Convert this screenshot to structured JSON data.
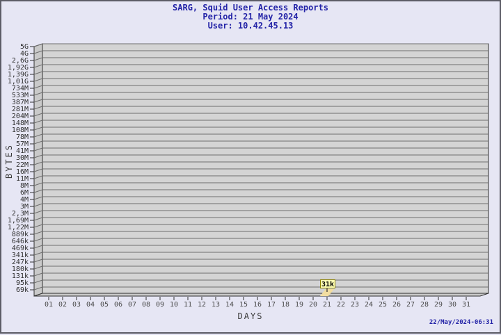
{
  "footer": {
    "timestamp": "22/May/2024-06:31"
  },
  "colors": {
    "background": "#e6e6f4",
    "title_text": "#2323a7",
    "plot_bg": "#d4d4d4",
    "wall": "#c9c9c9",
    "grid": "#6e6e6e",
    "frame": "#303030",
    "tick_text": "#2e2e2e",
    "x_tick_text": "#4a4a4a",
    "bar_fill": "#f2dda0",
    "flag_bg": "#ffffb3",
    "flag_border": "#8b8000",
    "flag_text": "#000000"
  },
  "chart_data": {
    "type": "bar",
    "title": "SARG, Squid User Access Reports",
    "subtitle_period": "Period: 21 May 2024",
    "subtitle_user": "User: 10.42.45.13",
    "xlabel": "DAYS",
    "ylabel": "BYTES",
    "grid": true,
    "style": "3d-bar",
    "y_axis": {
      "scale": "logarithmic-like",
      "ticks": [
        "5G",
        "4G",
        "2,6G",
        "1,92G",
        "1,39G",
        "1,01G",
        "734M",
        "533M",
        "387M",
        "281M",
        "204M",
        "148M",
        "108M",
        "78M",
        "57M",
        "41M",
        "30M",
        "22M",
        "16M",
        "11M",
        "8M",
        "6M",
        "4M",
        "3M",
        "2,3M",
        "1,69M",
        "1,22M",
        "889k",
        "646k",
        "469k",
        "341k",
        "247k",
        "180k",
        "131k",
        "95k",
        "69k"
      ]
    },
    "x_axis": {
      "ticks": [
        "01",
        "02",
        "03",
        "04",
        "05",
        "06",
        "07",
        "08",
        "09",
        "10",
        "11",
        "12",
        "13",
        "14",
        "15",
        "16",
        "17",
        "18",
        "19",
        "20",
        "21",
        "22",
        "23",
        "24",
        "25",
        "26",
        "27",
        "28",
        "29",
        "30",
        "31"
      ]
    },
    "bars": [
      {
        "x": "21",
        "label": "31k"
      }
    ]
  }
}
